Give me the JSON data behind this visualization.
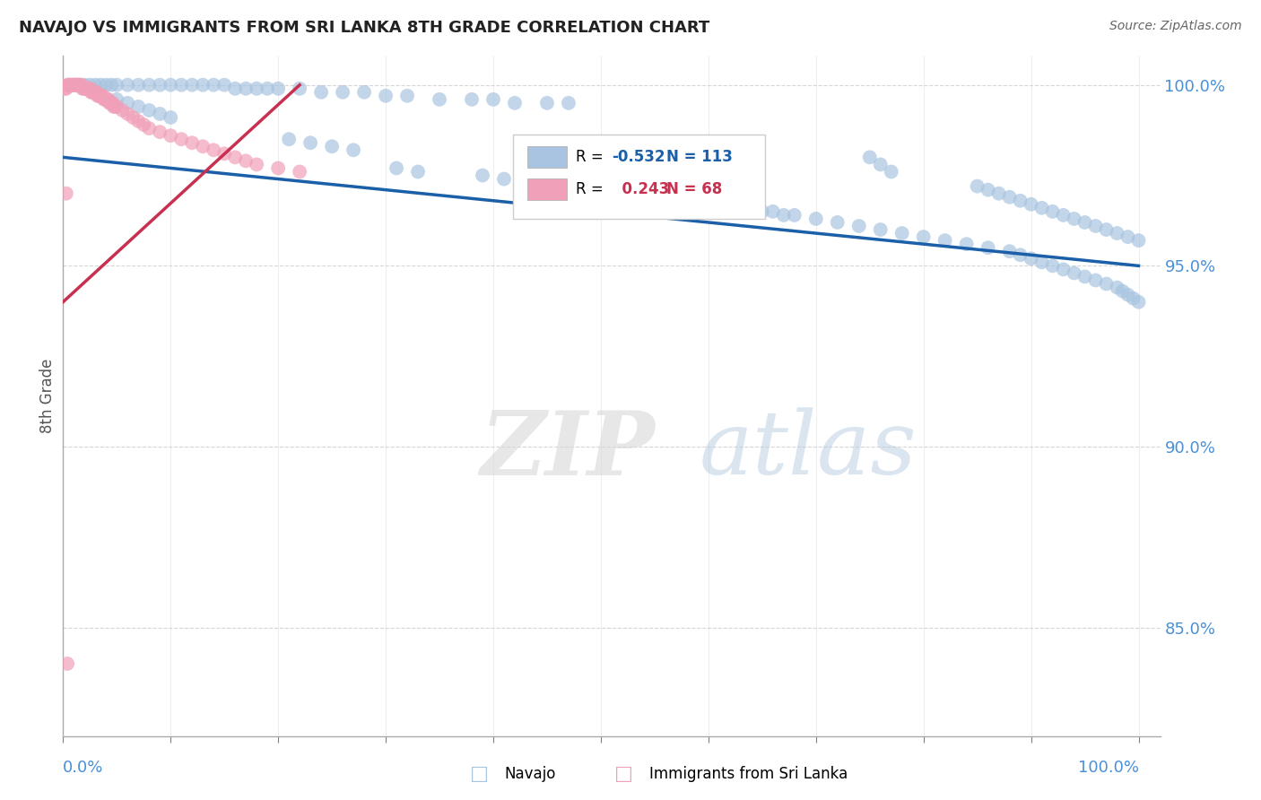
{
  "title": "NAVAJO VS IMMIGRANTS FROM SRI LANKA 8TH GRADE CORRELATION CHART",
  "source": "Source: ZipAtlas.com",
  "ylabel": "8th Grade",
  "inline_legend": [
    {
      "R": "-0.532",
      "N": "113"
    },
    {
      "R": "0.243",
      "N": "68"
    }
  ],
  "blue_scatter_x": [
    0.005,
    0.01,
    0.015,
    0.02,
    0.025,
    0.03,
    0.035,
    0.04,
    0.045,
    0.05,
    0.06,
    0.07,
    0.08,
    0.09,
    0.1,
    0.11,
    0.12,
    0.13,
    0.14,
    0.15,
    0.16,
    0.17,
    0.18,
    0.19,
    0.2,
    0.22,
    0.24,
    0.26,
    0.28,
    0.3,
    0.32,
    0.35,
    0.38,
    0.4,
    0.42,
    0.45,
    0.47,
    0.5,
    0.52,
    0.54,
    0.56,
    0.58,
    0.6,
    0.62,
    0.64,
    0.66,
    0.68,
    0.7,
    0.72,
    0.74,
    0.76,
    0.78,
    0.8,
    0.82,
    0.84,
    0.86,
    0.88,
    0.89,
    0.9,
    0.91,
    0.92,
    0.93,
    0.94,
    0.95,
    0.96,
    0.97,
    0.98,
    0.985,
    0.99,
    0.995,
    1.0,
    0.85,
    0.86,
    0.87,
    0.88,
    0.89,
    0.9,
    0.91,
    0.92,
    0.93,
    0.94,
    0.95,
    0.96,
    0.97,
    0.98,
    0.99,
    1.0,
    0.75,
    0.76,
    0.77,
    0.61,
    0.63,
    0.65,
    0.67,
    0.55,
    0.56,
    0.57,
    0.58,
    0.39,
    0.41,
    0.43,
    0.31,
    0.33,
    0.21,
    0.23,
    0.25,
    0.27,
    0.05,
    0.06,
    0.07,
    0.08,
    0.09,
    0.1
  ],
  "blue_scatter_y": [
    1.0,
    1.0,
    1.0,
    1.0,
    1.0,
    1.0,
    1.0,
    1.0,
    1.0,
    1.0,
    1.0,
    1.0,
    1.0,
    1.0,
    1.0,
    1.0,
    1.0,
    1.0,
    1.0,
    1.0,
    0.999,
    0.999,
    0.999,
    0.999,
    0.999,
    0.999,
    0.998,
    0.998,
    0.998,
    0.997,
    0.997,
    0.996,
    0.996,
    0.996,
    0.995,
    0.995,
    0.995,
    0.974,
    0.973,
    0.972,
    0.97,
    0.969,
    0.968,
    0.967,
    0.966,
    0.965,
    0.964,
    0.963,
    0.962,
    0.961,
    0.96,
    0.959,
    0.958,
    0.957,
    0.956,
    0.955,
    0.954,
    0.953,
    0.952,
    0.951,
    0.95,
    0.949,
    0.948,
    0.947,
    0.946,
    0.945,
    0.944,
    0.943,
    0.942,
    0.941,
    0.94,
    0.972,
    0.971,
    0.97,
    0.969,
    0.968,
    0.967,
    0.966,
    0.965,
    0.964,
    0.963,
    0.962,
    0.961,
    0.96,
    0.959,
    0.958,
    0.957,
    0.98,
    0.978,
    0.976,
    0.967,
    0.966,
    0.965,
    0.964,
    0.97,
    0.969,
    0.968,
    0.967,
    0.975,
    0.974,
    0.973,
    0.977,
    0.976,
    0.985,
    0.984,
    0.983,
    0.982,
    0.996,
    0.995,
    0.994,
    0.993,
    0.992,
    0.991
  ],
  "pink_scatter_x": [
    0.002,
    0.003,
    0.004,
    0.005,
    0.006,
    0.007,
    0.008,
    0.009,
    0.01,
    0.011,
    0.012,
    0.013,
    0.014,
    0.015,
    0.016,
    0.017,
    0.018,
    0.019,
    0.02,
    0.021,
    0.022,
    0.023,
    0.024,
    0.025,
    0.026,
    0.027,
    0.028,
    0.029,
    0.03,
    0.031,
    0.032,
    0.033,
    0.034,
    0.035,
    0.036,
    0.037,
    0.038,
    0.039,
    0.04,
    0.041,
    0.042,
    0.043,
    0.044,
    0.045,
    0.046,
    0.047,
    0.048,
    0.05,
    0.055,
    0.06,
    0.065,
    0.07,
    0.075,
    0.08,
    0.09,
    0.1,
    0.11,
    0.12,
    0.13,
    0.14,
    0.15,
    0.16,
    0.17,
    0.18,
    0.2,
    0.22,
    0.003,
    0.004
  ],
  "pink_scatter_y": [
    0.999,
    0.999,
    1.0,
    1.0,
    1.0,
    1.0,
    1.0,
    1.0,
    1.0,
    1.0,
    1.0,
    1.0,
    1.0,
    1.0,
    1.0,
    1.0,
    0.999,
    0.999,
    0.999,
    0.999,
    0.999,
    0.999,
    0.999,
    0.999,
    0.998,
    0.998,
    0.998,
    0.998,
    0.998,
    0.998,
    0.997,
    0.997,
    0.997,
    0.997,
    0.997,
    0.997,
    0.996,
    0.996,
    0.996,
    0.996,
    0.996,
    0.995,
    0.995,
    0.995,
    0.995,
    0.994,
    0.994,
    0.994,
    0.993,
    0.992,
    0.991,
    0.99,
    0.989,
    0.988,
    0.987,
    0.986,
    0.985,
    0.984,
    0.983,
    0.982,
    0.981,
    0.98,
    0.979,
    0.978,
    0.977,
    0.976,
    0.97,
    0.84
  ],
  "blue_line_x": [
    0.0,
    1.0
  ],
  "blue_line_y": [
    0.98,
    0.95
  ],
  "pink_line_x": [
    0.0,
    0.22
  ],
  "pink_line_y": [
    0.94,
    1.0
  ],
  "xlim": [
    0.0,
    1.02
  ],
  "ylim": [
    0.82,
    1.008
  ],
  "yticks": [
    0.85,
    0.9,
    0.95,
    1.0
  ],
  "ytick_labels": [
    "85.0%",
    "90.0%",
    "95.0%",
    "100.0%"
  ],
  "scatter_color_blue": "#a8c4e0",
  "scatter_color_pink": "#f0a0b8",
  "line_color_blue": "#1a5fa8",
  "line_color_pink": "#c83050",
  "title_color": "#222222",
  "source_color": "#666666",
  "axis_tick_color": "#4a90d8",
  "grid_color": "#cccccc",
  "watermark_zip": "ZIP",
  "watermark_atlas": "atlas"
}
